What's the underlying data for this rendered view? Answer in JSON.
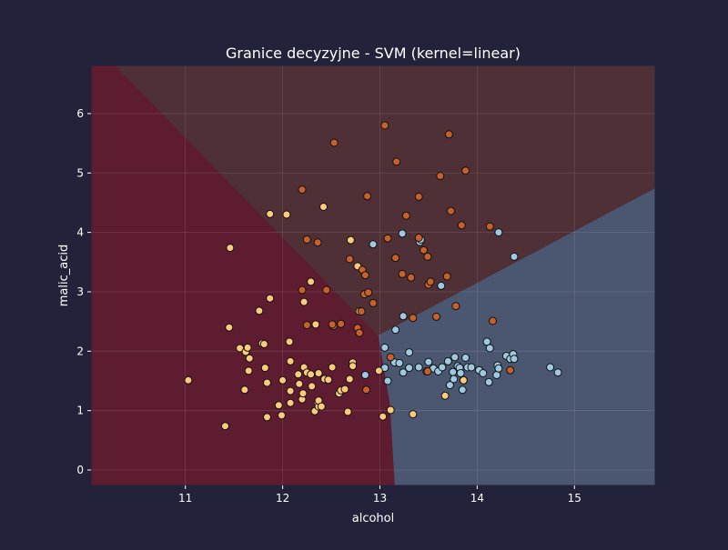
{
  "chart_data": {
    "type": "scatter",
    "title": "Granice decyzyjne - SVM (kernel=linear)",
    "xlabel": "alcohol",
    "ylabel": "malic_acid",
    "xlim": [
      10.03,
      15.83
    ],
    "ylim": [
      -0.26,
      6.81
    ],
    "xticks": [
      11,
      12,
      13,
      14,
      15
    ],
    "yticks": [
      0,
      1,
      2,
      3,
      4,
      5,
      6
    ],
    "xtick_labels": [
      "11",
      "12",
      "13",
      "14",
      "15"
    ],
    "ytick_labels": [
      "0",
      "1",
      "2",
      "3",
      "4",
      "5",
      "6"
    ],
    "grid": true,
    "legend": "none",
    "background_color": "#22223a",
    "decision_regions": [
      {
        "class": "class_0",
        "color": "#4b5670",
        "polygon": [
          [
            13.15,
            -0.26
          ],
          [
            15.83,
            -0.26
          ],
          [
            15.83,
            4.75
          ],
          [
            12.98,
            2.27
          ],
          [
            13.1,
            1.1
          ]
        ]
      },
      {
        "class": "class_1",
        "color": "#5e1c31",
        "polygon": [
          [
            10.03,
            -0.26
          ],
          [
            13.15,
            -0.26
          ],
          [
            13.1,
            1.1
          ],
          [
            12.98,
            2.27
          ],
          [
            10.28,
            6.81
          ],
          [
            10.03,
            6.81
          ]
        ]
      },
      {
        "class": "class_2",
        "color": "#4e3036",
        "polygon": [
          [
            10.28,
            6.81
          ],
          [
            15.83,
            6.81
          ],
          [
            15.83,
            4.75
          ],
          [
            12.98,
            2.27
          ]
        ]
      }
    ],
    "series": [
      {
        "class": "class_0",
        "color": "#9ecae1",
        "x": [
          13.05,
          13.05,
          13.08,
          13.15,
          13.2,
          13.24,
          13.3,
          13.3,
          13.4,
          13.5,
          13.55,
          13.6,
          13.64,
          13.7,
          13.72,
          13.75,
          13.76,
          13.77,
          13.8,
          13.82,
          13.83,
          13.85,
          13.86,
          13.88,
          13.9,
          13.94,
          14.02,
          14.06,
          14.1,
          14.12,
          14.13,
          14.2,
          14.21,
          14.22,
          14.3,
          14.34,
          14.37,
          14.38,
          14.75,
          14.83,
          12.85,
          12.93,
          13.16,
          13.24,
          13.23,
          13.41,
          13.42,
          13.63,
          14.22,
          14.38
        ],
        "y": [
          1.72,
          2.06,
          1.5,
          1.81,
          1.8,
          1.64,
          1.98,
          1.72,
          1.73,
          1.82,
          1.71,
          1.66,
          1.73,
          1.83,
          1.43,
          1.65,
          1.53,
          1.9,
          1.75,
          1.72,
          1.63,
          1.35,
          1.51,
          1.89,
          1.73,
          1.73,
          1.68,
          1.63,
          2.16,
          1.48,
          2.05,
          1.6,
          1.76,
          1.71,
          1.92,
          1.87,
          1.95,
          1.87,
          1.73,
          1.64,
          1.6,
          3.8,
          2.36,
          2.59,
          3.98,
          3.84,
          3.88,
          3.1,
          4.0,
          3.59
        ]
      },
      {
        "class": "class_1",
        "color": "#fdc97a",
        "x": [
          11.03,
          11.41,
          11.45,
          11.46,
          11.56,
          11.61,
          11.62,
          11.64,
          11.65,
          11.66,
          11.76,
          11.79,
          11.81,
          11.82,
          11.84,
          11.84,
          11.87,
          11.96,
          11.99,
          12.0,
          12.04,
          12.07,
          12.08,
          12.08,
          12.08,
          12.16,
          12.17,
          12.2,
          12.21,
          12.22,
          12.25,
          12.29,
          12.29,
          12.3,
          12.33,
          12.34,
          12.36,
          12.37,
          12.37,
          12.37,
          12.4,
          12.42,
          12.43,
          12.47,
          12.51,
          12.52,
          12.58,
          12.6,
          12.64,
          12.67,
          12.69,
          12.7,
          12.72,
          12.72,
          12.77,
          12.79,
          12.99,
          13.03,
          13.11,
          13.34,
          13.67,
          13.86,
          11.87,
          12.22
        ],
        "y": [
          1.51,
          0.74,
          2.4,
          3.74,
          2.05,
          1.35,
          1.99,
          2.06,
          1.67,
          1.88,
          2.68,
          2.13,
          2.12,
          1.72,
          0.89,
          1.47,
          4.31,
          1.09,
          0.92,
          1.51,
          4.3,
          2.16,
          1.33,
          1.13,
          1.83,
          1.61,
          1.45,
          1.19,
          1.29,
          1.73,
          1.64,
          1.61,
          3.17,
          1.41,
          0.99,
          2.45,
          1.13,
          1.63,
          1.07,
          1.17,
          1.07,
          4.43,
          1.53,
          1.52,
          1.73,
          2.43,
          1.29,
          1.34,
          1.36,
          0.98,
          1.53,
          3.87,
          1.81,
          1.75,
          3.43,
          2.67,
          1.67,
          0.9,
          1.01,
          0.94,
          1.25,
          1.51,
          2.89,
          2.83
        ]
      },
      {
        "class": "class_2",
        "color": "#c8602a",
        "x": [
          12.2,
          12.25,
          12.36,
          12.45,
          12.51,
          12.53,
          12.6,
          12.69,
          12.77,
          12.79,
          12.81,
          12.82,
          12.84,
          12.85,
          12.86,
          12.87,
          12.88,
          12.93,
          13.05,
          13.08,
          13.11,
          13.16,
          13.17,
          13.23,
          13.27,
          13.32,
          13.34,
          13.4,
          13.4,
          13.45,
          13.48,
          13.49,
          13.5,
          13.52,
          13.58,
          13.62,
          13.69,
          13.71,
          13.73,
          13.78,
          13.84,
          13.88,
          14.13,
          14.16,
          14.34,
          12.2,
          12.25,
          13.49
        ],
        "y": [
          3.03,
          3.88,
          3.83,
          3.03,
          2.45,
          5.51,
          2.46,
          3.55,
          2.39,
          2.31,
          2.67,
          3.37,
          2.96,
          3.28,
          1.35,
          4.61,
          2.99,
          2.81,
          5.8,
          3.9,
          1.9,
          3.57,
          5.19,
          3.3,
          4.28,
          3.24,
          2.56,
          3.91,
          4.6,
          3.7,
          1.66,
          3.59,
          3.12,
          3.17,
          2.58,
          4.95,
          3.26,
          5.65,
          4.36,
          2.76,
          4.12,
          5.04,
          4.1,
          2.51,
          1.68,
          4.72,
          2.44,
          1.66
        ]
      }
    ]
  }
}
